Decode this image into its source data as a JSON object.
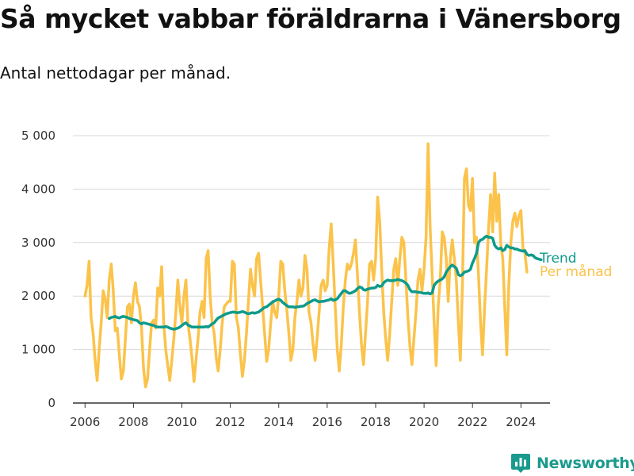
{
  "header": {
    "title": "Så mycket vabbar föräldrarna i Vänersborg",
    "subtitle": "Antal nettodagar per månad."
  },
  "brand": {
    "name": "Newsworthy",
    "icon": "bar-chart-logo-icon",
    "color": "#1a9a8d"
  },
  "colors": {
    "trend": "#0f9a8b",
    "monthly": "#fbc34b",
    "grid": "#d9d9d9",
    "axis": "#333333"
  },
  "chart_data": {
    "type": "line",
    "title": "Så mycket vabbar föräldrarna i Vänersborg",
    "subtitle": "Antal nettodagar per månad.",
    "xlim": [
      2005.5,
      2025.2
    ],
    "ylim": [
      0,
      5000
    ],
    "x_ticks": [
      2006,
      2008,
      2010,
      2012,
      2014,
      2016,
      2018,
      2020,
      2022,
      2024
    ],
    "x_tick_labels": [
      "2006",
      "2008",
      "2010",
      "2012",
      "2014",
      "2016",
      "2018",
      "2020",
      "2022",
      "2024"
    ],
    "y_ticks": [
      0,
      1000,
      2000,
      3000,
      4000,
      5000
    ],
    "y_tick_labels": [
      "0",
      "1 000",
      "2 000",
      "3 000",
      "4 000",
      "5 000"
    ],
    "grid": true,
    "legend_placement": "right-end-of-lines",
    "series": [
      {
        "name": "Per månad",
        "color": "#fbc34b",
        "x_start": 2006.0,
        "step": 0.08333,
        "values": [
          2000,
          2200,
          2650,
          1600,
          1300,
          800,
          420,
          1000,
          1500,
          2100,
          1950,
          1600,
          2300,
          2600,
          2100,
          1350,
          1400,
          900,
          450,
          600,
          1200,
          1800,
          1850,
          1500,
          2000,
          2250,
          1900,
          1800,
          1400,
          650,
          300,
          450,
          1000,
          1500,
          1550,
          1400,
          2150,
          2000,
          2550,
          1500,
          1000,
          700,
          420,
          800,
          1200,
          1700,
          2300,
          1800,
          1500,
          2000,
          2300,
          1500,
          1200,
          850,
          400,
          800,
          1200,
          1700,
          1900,
          1600,
          2700,
          2850,
          2000,
          1500,
          1300,
          850,
          600,
          1000,
          1500,
          1800,
          1850,
          1900,
          1900,
          2650,
          2600,
          1600,
          1400,
          900,
          500,
          800,
          1300,
          1900,
          2500,
          2200,
          2000,
          2700,
          2800,
          2300,
          1800,
          1300,
          780,
          1000,
          1500,
          1900,
          1700,
          1600,
          2000,
          2650,
          2600,
          2100,
          1750,
          1300,
          800,
          1000,
          1600,
          1900,
          2300,
          2000,
          2150,
          2760,
          2500,
          1700,
          1500,
          1100,
          800,
          1200,
          1700,
          2200,
          2300,
          2100,
          2200,
          2900,
          3350,
          2600,
          1800,
          1000,
          600,
          1100,
          1800,
          2300,
          2600,
          2500,
          2600,
          2800,
          3050,
          2400,
          1700,
          1100,
          720,
          1300,
          1900,
          2600,
          2650,
          2300,
          2700,
          3850,
          3400,
          2500,
          1700,
          1200,
          800,
          1300,
          1900,
          2500,
          2700,
          2200,
          2700,
          3100,
          3000,
          2300,
          1600,
          1050,
          720,
          1200,
          1700,
          2300,
          2500,
          2100,
          2500,
          3100,
          4850,
          3300,
          2400,
          1500,
          700,
          1800,
          2300,
          3200,
          3100,
          2700,
          1900,
          2700,
          3050,
          2700,
          2300,
          1500,
          800,
          2200,
          4200,
          4380,
          3700,
          3600,
          4200,
          3000,
          3100,
          2400,
          1500,
          900,
          1800,
          2500,
          3300,
          3900,
          3200,
          4300,
          3400,
          3900,
          3000,
          2700,
          1800,
          900,
          2200,
          3000,
          3400,
          3550,
          3300,
          3500,
          3600,
          2900,
          2800,
          2450
        ]
      },
      {
        "name": "Trend",
        "color": "#0f9a8b",
        "x_start": 2007.0,
        "step": 0.08333,
        "values": [
          1580,
          1600,
          1610,
          1620,
          1600,
          1590,
          1610,
          1620,
          1610,
          1600,
          1580,
          1570,
          1560,
          1550,
          1540,
          1500,
          1480,
          1500,
          1490,
          1480,
          1470,
          1460,
          1450,
          1430,
          1420,
          1420,
          1420,
          1420,
          1430,
          1420,
          1400,
          1390,
          1380,
          1390,
          1400,
          1420,
          1450,
          1480,
          1500,
          1460,
          1440,
          1420,
          1420,
          1420,
          1420,
          1420,
          1420,
          1420,
          1430,
          1420,
          1450,
          1480,
          1500,
          1550,
          1590,
          1610,
          1630,
          1650,
          1670,
          1680,
          1690,
          1700,
          1700,
          1690,
          1690,
          1700,
          1710,
          1700,
          1680,
          1670,
          1680,
          1690,
          1680,
          1690,
          1700,
          1730,
          1760,
          1790,
          1800,
          1830,
          1860,
          1890,
          1910,
          1930,
          1940,
          1920,
          1880,
          1850,
          1820,
          1800,
          1800,
          1800,
          1790,
          1800,
          1800,
          1810,
          1810,
          1830,
          1860,
          1880,
          1900,
          1920,
          1930,
          1910,
          1890,
          1900,
          1900,
          1910,
          1920,
          1930,
          1950,
          1920,
          1930,
          1950,
          2000,
          2050,
          2100,
          2100,
          2070,
          2050,
          2060,
          2080,
          2100,
          2140,
          2170,
          2160,
          2120,
          2110,
          2130,
          2140,
          2150,
          2150,
          2160,
          2200,
          2180,
          2190,
          2250,
          2280,
          2300,
          2290,
          2290,
          2290,
          2300,
          2310,
          2300,
          2290,
          2270,
          2240,
          2200,
          2120,
          2080,
          2080,
          2080,
          2070,
          2070,
          2060,
          2050,
          2050,
          2060,
          2040,
          2060,
          2200,
          2250,
          2280,
          2300,
          2320,
          2360,
          2450,
          2500,
          2550,
          2580,
          2550,
          2520,
          2400,
          2380,
          2400,
          2450,
          2460,
          2470,
          2500,
          2620,
          2700,
          2800,
          3000,
          3050,
          3060,
          3100,
          3120,
          3100,
          3100,
          3080,
          2950,
          2900,
          2880,
          2900,
          2850,
          2870,
          2950,
          2920,
          2900,
          2900,
          2880,
          2880,
          2860,
          2850,
          2840,
          2850,
          2780,
          2760,
          2770,
          2760,
          2720,
          2700,
          2690,
          2680
        ]
      }
    ],
    "legend": [
      {
        "label": "Trend",
        "color": "#0f9a8b"
      },
      {
        "label": "Per månad",
        "color": "#fbc34b"
      }
    ]
  }
}
